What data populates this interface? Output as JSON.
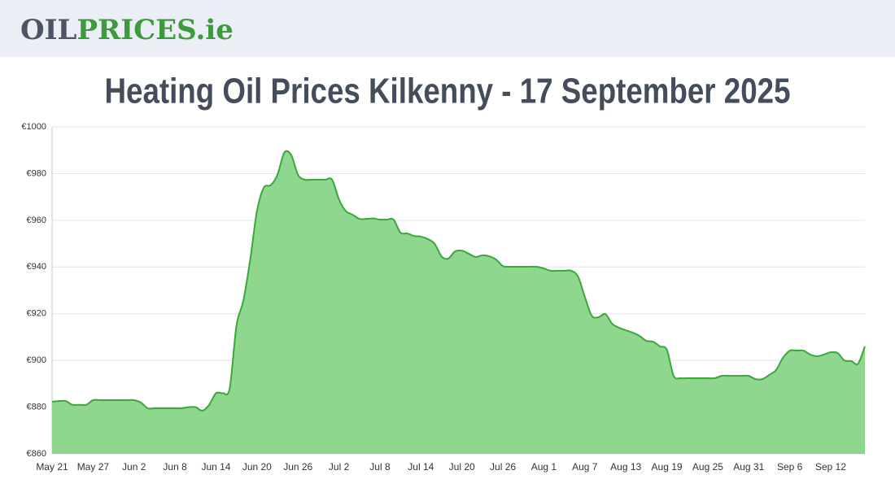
{
  "header": {
    "logo": [
      "OIL",
      "PRICES.ie"
    ]
  },
  "chart_data": {
    "type": "area",
    "title": "Heating Oil Prices Kilkenny - 17 September 2025",
    "categories": [
      "May 21",
      null,
      null,
      null,
      null,
      null,
      "May 27",
      null,
      null,
      null,
      null,
      null,
      "Jun 2",
      null,
      null,
      null,
      null,
      null,
      "Jun 8",
      null,
      null,
      null,
      null,
      null,
      "Jun 14",
      null,
      null,
      null,
      null,
      null,
      "Jun 20",
      null,
      null,
      null,
      null,
      null,
      "Jun 26",
      null,
      null,
      null,
      null,
      null,
      "Jul 2",
      null,
      null,
      null,
      null,
      null,
      "Jul 8",
      null,
      null,
      null,
      null,
      null,
      "Jul 14",
      null,
      null,
      null,
      null,
      null,
      "Jul 20",
      null,
      null,
      null,
      null,
      null,
      "Jul 26",
      null,
      null,
      null,
      null,
      null,
      "Aug 1",
      null,
      null,
      null,
      null,
      null,
      "Aug 7",
      null,
      null,
      null,
      null,
      null,
      "Aug 13",
      null,
      null,
      null,
      null,
      null,
      "Aug 19",
      null,
      null,
      null,
      null,
      null,
      "Aug 25",
      null,
      null,
      null,
      null,
      null,
      "Aug 31",
      null,
      null,
      null,
      null,
      null,
      "Sep 6",
      null,
      null,
      null,
      null,
      null,
      "Sep 12",
      null,
      null,
      null,
      null,
      null
    ],
    "values": [
      882.3,
      882.6,
      882.6,
      881,
      881,
      881,
      883,
      883,
      883,
      883,
      883,
      883,
      883,
      882,
      879.5,
      879.5,
      879.5,
      879.5,
      879.5,
      879.5,
      880,
      880,
      878.5,
      881,
      886,
      886,
      888,
      915,
      925.5,
      943,
      964,
      974,
      975,
      979.5,
      989,
      988,
      979.5,
      977.4,
      977.4,
      977.4,
      977.4,
      977.4,
      969,
      964,
      962.4,
      960.6,
      960.6,
      960.8,
      960.3,
      960.3,
      960.3,
      954.7,
      954.4,
      953.3,
      953,
      952,
      950,
      944.6,
      943.6,
      946.7,
      947,
      945.7,
      944.3,
      945,
      944.6,
      943.2,
      940.4,
      940.1,
      940.1,
      940.1,
      940.1,
      940.1,
      939.4,
      938.4,
      938.4,
      938.4,
      938.4,
      935.9,
      927.2,
      919.2,
      918.5,
      919.9,
      915.7,
      914,
      912.9,
      911.9,
      910.5,
      908.4,
      908,
      906,
      904.6,
      893.4,
      892.4,
      892.4,
      892.4,
      892.4,
      892.4,
      892.4,
      893.4,
      893.4,
      893.4,
      893.4,
      893.4,
      892,
      892,
      893.8,
      895.9,
      901.1,
      904.2,
      904.2,
      904.2,
      902.5,
      901.8,
      902.5,
      903.5,
      903.2,
      900,
      899.7,
      898.6,
      906
    ],
    "color": "#3aa83a",
    "fill_color": "#8fd68f",
    "ylim": [
      860,
      1000
    ],
    "yticks": [
      {
        "value": 860,
        "label": "€860"
      },
      {
        "value": 880,
        "label": "€880"
      },
      {
        "value": 900,
        "label": "€900"
      },
      {
        "value": 920,
        "label": "€920"
      },
      {
        "value": 940,
        "label": "€940"
      },
      {
        "value": 960,
        "label": "€960"
      },
      {
        "value": 980,
        "label": "€980"
      },
      {
        "value": 1000,
        "label": "€1000"
      }
    ],
    "grid": true
  }
}
